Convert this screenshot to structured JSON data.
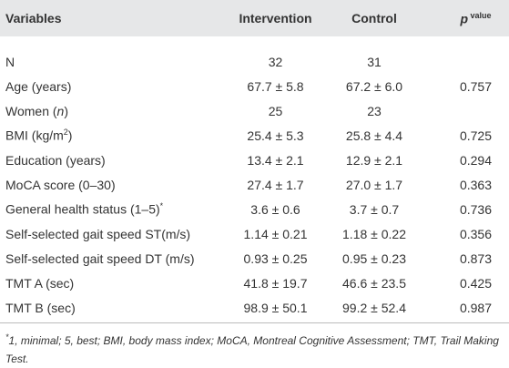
{
  "table": {
    "header": [
      "Variables",
      "Intervention",
      "Control",
      [
        "p",
        " value"
      ]
    ],
    "rows": [
      [
        "N",
        "32",
        "31",
        null
      ],
      [
        "Age (years)",
        "67.7 ± 5.8",
        "67.2 ± 6.0",
        "0.757"
      ],
      [
        [
          "Women (",
          "n",
          ")"
        ],
        "25",
        "23",
        null
      ],
      [
        [
          "BMI (kg/m",
          "2",
          ")"
        ],
        "25.4 ± 5.3",
        "25.8 ± 4.4",
        "0.725"
      ],
      [
        "Education (years)",
        "13.4 ± 2.1",
        "12.9 ± 2.1",
        "0.294"
      ],
      [
        "MoCA score (0–30)",
        "27.4 ± 1.7",
        "27.0 ± 1.7",
        "0.363"
      ],
      [
        [
          "General health status (1–5)",
          "*"
        ],
        "3.6 ± 0.6",
        "3.7 ± 0.7",
        "0.736"
      ],
      [
        "Self-selected gait speed ST(m/s)",
        "1.14 ± 0.21",
        "1.18 ± 0.22",
        "0.356"
      ],
      [
        "Self-selected gait speed DT (m/s)",
        "0.93 ± 0.25",
        "0.95 ± 0.23",
        "0.873"
      ],
      [
        "TMT A (sec)",
        "41.8 ± 19.7",
        "46.6 ± 23.5",
        "0.425"
      ],
      [
        "TMT B (sec)",
        "98.9 ± 50.1",
        "99.2 ± 52.4",
        "0.987"
      ]
    ],
    "footnote": [
      "*",
      "1, minimal; 5, best; BMI, body mass index; MoCA, Montreal Cognitive Assessment; TMT, Trail Making Test."
    ]
  }
}
